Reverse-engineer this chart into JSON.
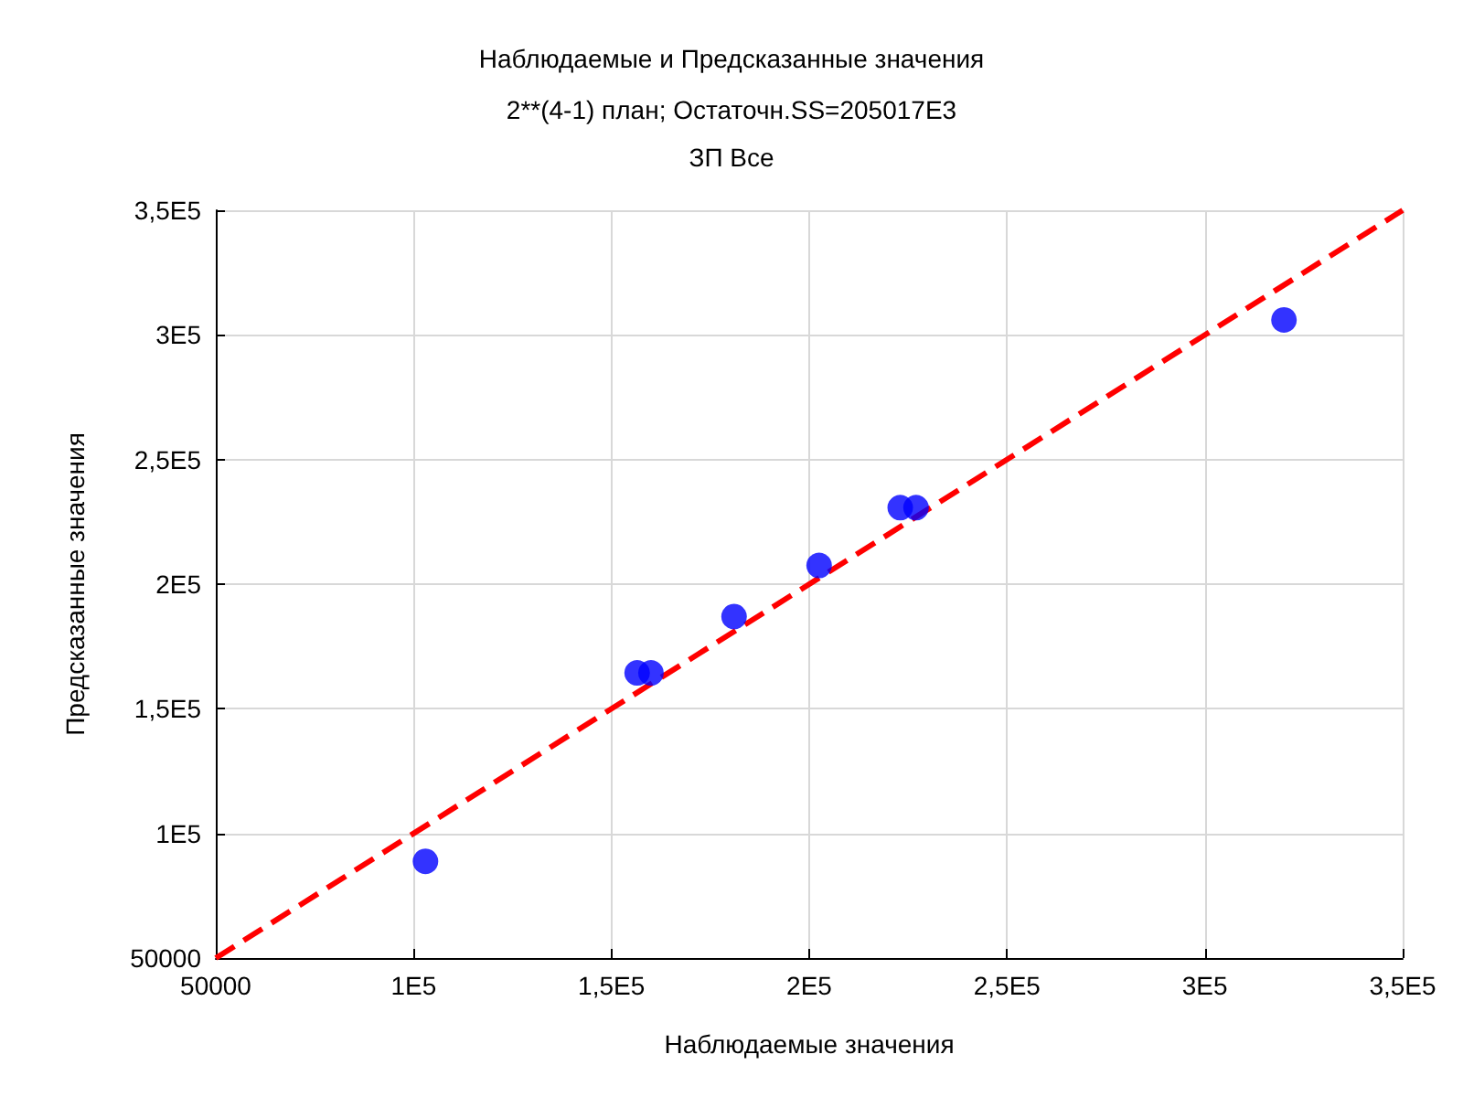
{
  "chart_data": {
    "type": "scatter",
    "title": "Наблюдаемые и Предсказанные значения",
    "subtitle": "2**(4-1) план; Остаточн.SS=205017E3\nЗП Все",
    "xlabel": "Наблюдаемые значения",
    "ylabel": "Предсказанные значения",
    "xlim": [
      50000,
      350000
    ],
    "ylim": [
      50000,
      350000
    ],
    "xticks": [
      50000,
      {
        "value": 100000,
        "label": "1E5"
      },
      {
        "value": 150000,
        "label": "1,5E5"
      },
      {
        "value": 200000,
        "label": "2E5"
      },
      {
        "value": 250000,
        "label": "2,5E5"
      },
      {
        "value": 300000,
        "label": "3E5"
      },
      {
        "value": 350000,
        "label": "3,5E5"
      }
    ],
    "yticks": [
      50000,
      {
        "value": 100000,
        "label": "1E5"
      },
      {
        "value": 150000,
        "label": "1,5E5"
      },
      {
        "value": 200000,
        "label": "2E5"
      },
      {
        "value": 250000,
        "label": "2,5E5"
      },
      {
        "value": 300000,
        "label": "3E5"
      },
      {
        "value": 350000,
        "label": "3,5E5"
      }
    ],
    "grid": true,
    "marker": "circle",
    "series": [
      {
        "type": "scatter",
        "color": "#0000ff",
        "x": [
          103000,
          156500,
          160000,
          181000,
          202500,
          223000,
          227000,
          320000
        ],
        "values": [
          88800,
          164400,
          164400,
          187000,
          207500,
          230700,
          230700,
          306000
        ]
      },
      {
        "type": "line",
        "color": "#ff0000",
        "line_style": "dashed",
        "marker": "none",
        "x": [
          50000,
          350000
        ],
        "values": [
          50000,
          350000
        ]
      }
    ]
  }
}
